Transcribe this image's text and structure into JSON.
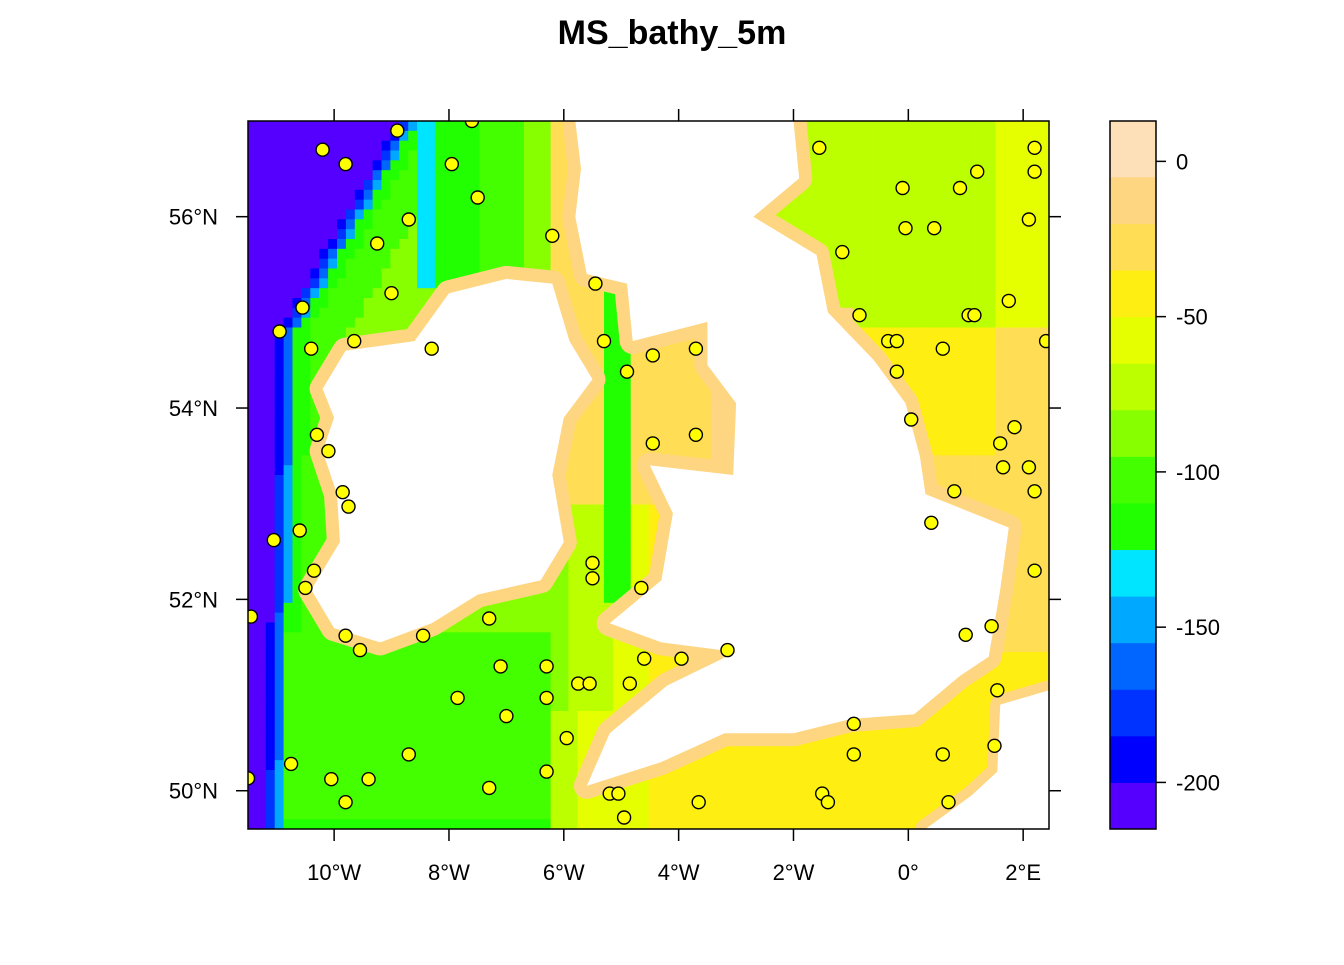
{
  "chart_data": {
    "type": "heatmap",
    "title": "MS_bathy_5m",
    "x_range": [
      -11.5,
      2.45
    ],
    "y_range": [
      49.6,
      57.0
    ],
    "x_ticks": [
      {
        "value": -10,
        "label": "10°W"
      },
      {
        "value": -8,
        "label": "8°W"
      },
      {
        "value": -6,
        "label": "6°W"
      },
      {
        "value": -4,
        "label": "4°W"
      },
      {
        "value": -2,
        "label": "2°W"
      },
      {
        "value": 0,
        "label": "0°"
      },
      {
        "value": 2,
        "label": "2°E"
      }
    ],
    "y_ticks": [
      {
        "value": 56,
        "label": "56°N"
      },
      {
        "value": 54,
        "label": "54°N"
      },
      {
        "value": 52,
        "label": "52°N"
      },
      {
        "value": 50,
        "label": "50°N"
      }
    ],
    "colorbar": {
      "range": [
        -215,
        13
      ],
      "bands": [
        {
          "from": -215,
          "to": -200,
          "color": "#5500ff"
        },
        {
          "from": -200,
          "to": -185,
          "color": "#0000ff"
        },
        {
          "from": -185,
          "to": -170,
          "color": "#0033ff"
        },
        {
          "from": -170,
          "to": -155,
          "color": "#0066ff"
        },
        {
          "from": -155,
          "to": -140,
          "color": "#00a8ff"
        },
        {
          "from": -140,
          "to": -125,
          "color": "#00e5ff"
        },
        {
          "from": -125,
          "to": -110,
          "color": "#22ff00"
        },
        {
          "from": -110,
          "to": -95,
          "color": "#44ff00"
        },
        {
          "from": -95,
          "to": -80,
          "color": "#88ff00"
        },
        {
          "from": -80,
          "to": -65,
          "color": "#bbff00"
        },
        {
          "from": -65,
          "to": -50,
          "color": "#e6ff00"
        },
        {
          "from": -50,
          "to": -35,
          "color": "#ffee11"
        },
        {
          "from": -35,
          "to": -20,
          "color": "#ffdd55"
        },
        {
          "from": -20,
          "to": -5,
          "color": "#fed580"
        },
        {
          "from": -5,
          "to": 13,
          "color": "#fee0b8"
        }
      ],
      "ticks": [
        {
          "value": 0,
          "label": "0"
        },
        {
          "value": -50,
          "label": "-50"
        },
        {
          "value": -100,
          "label": "-100"
        },
        {
          "value": -150,
          "label": "-150"
        },
        {
          "value": -200,
          "label": "-200"
        }
      ]
    },
    "points": [
      [
        -8.9,
        56.9
      ],
      [
        -7.6,
        57.0
      ],
      [
        -10.2,
        56.7
      ],
      [
        -9.8,
        56.55
      ],
      [
        -7.95,
        56.55
      ],
      [
        -7.5,
        56.2
      ],
      [
        -8.7,
        55.97
      ],
      [
        -9.25,
        55.72
      ],
      [
        -9.0,
        55.2
      ],
      [
        -10.55,
        55.05
      ],
      [
        -10.95,
        54.8
      ],
      [
        -9.65,
        54.7
      ],
      [
        -10.4,
        54.62
      ],
      [
        -8.3,
        54.62
      ],
      [
        -6.2,
        55.8
      ],
      [
        -5.45,
        55.3
      ],
      [
        -5.3,
        54.7
      ],
      [
        -4.45,
        54.55
      ],
      [
        -3.7,
        54.62
      ],
      [
        -4.9,
        54.38
      ],
      [
        -10.1,
        53.55
      ],
      [
        -10.3,
        53.72
      ],
      [
        -9.85,
        53.12
      ],
      [
        -9.75,
        52.97
      ],
      [
        -11.05,
        52.62
      ],
      [
        -10.6,
        52.72
      ],
      [
        -10.35,
        52.3
      ],
      [
        -10.5,
        52.12
      ],
      [
        -11.45,
        51.82
      ],
      [
        -9.8,
        51.62
      ],
      [
        -9.55,
        51.47
      ],
      [
        -8.45,
        51.62
      ],
      [
        -7.3,
        51.8
      ],
      [
        -7.1,
        51.3
      ],
      [
        -7.85,
        50.97
      ],
      [
        -7.0,
        50.78
      ],
      [
        -8.7,
        50.38
      ],
      [
        -10.75,
        50.28
      ],
      [
        -10.05,
        50.12
      ],
      [
        -9.8,
        49.88
      ],
      [
        -9.4,
        50.12
      ],
      [
        -11.5,
        50.13
      ],
      [
        -7.3,
        50.03
      ],
      [
        -6.3,
        51.3
      ],
      [
        -6.3,
        50.97
      ],
      [
        -5.95,
        50.55
      ],
      [
        -6.3,
        50.2
      ],
      [
        -5.5,
        52.38
      ],
      [
        -5.5,
        52.22
      ],
      [
        -4.65,
        52.12
      ],
      [
        -5.75,
        51.12
      ],
      [
        -5.55,
        51.12
      ],
      [
        -4.85,
        51.12
      ],
      [
        -4.6,
        51.38
      ],
      [
        -3.95,
        51.38
      ],
      [
        -3.15,
        51.47
      ],
      [
        -4.45,
        53.63
      ],
      [
        -3.7,
        53.72
      ],
      [
        -5.2,
        49.97
      ],
      [
        -5.05,
        49.97
      ],
      [
        -4.95,
        49.72
      ],
      [
        -3.65,
        49.88
      ],
      [
        -1.55,
        56.72
      ],
      [
        -1.15,
        55.63
      ],
      [
        -0.85,
        54.97
      ],
      [
        -0.35,
        54.7
      ],
      [
        -0.2,
        54.7
      ],
      [
        -0.2,
        54.38
      ],
      [
        0.05,
        53.88
      ],
      [
        0.6,
        54.62
      ],
      [
        -0.1,
        56.3
      ],
      [
        -0.05,
        55.88
      ],
      [
        0.45,
        55.88
      ],
      [
        0.9,
        56.3
      ],
      [
        1.2,
        56.47
      ],
      [
        2.2,
        56.72
      ],
      [
        2.2,
        56.47
      ],
      [
        2.1,
        55.97
      ],
      [
        1.75,
        55.12
      ],
      [
        1.05,
        54.97
      ],
      [
        1.15,
        54.97
      ],
      [
        2.4,
        54.7
      ],
      [
        0.8,
        53.13
      ],
      [
        0.4,
        52.8
      ],
      [
        1.6,
        53.63
      ],
      [
        1.85,
        53.8
      ],
      [
        1.65,
        53.38
      ],
      [
        2.1,
        53.38
      ],
      [
        2.2,
        53.13
      ],
      [
        2.2,
        52.3
      ],
      [
        1.45,
        51.72
      ],
      [
        1.0,
        51.63
      ],
      [
        1.55,
        51.05
      ],
      [
        1.5,
        50.47
      ],
      [
        -0.95,
        50.7
      ],
      [
        -0.95,
        50.38
      ],
      [
        0.6,
        50.38
      ],
      [
        0.7,
        49.88
      ],
      [
        -1.5,
        49.97
      ],
      [
        -1.4,
        49.88
      ]
    ]
  }
}
